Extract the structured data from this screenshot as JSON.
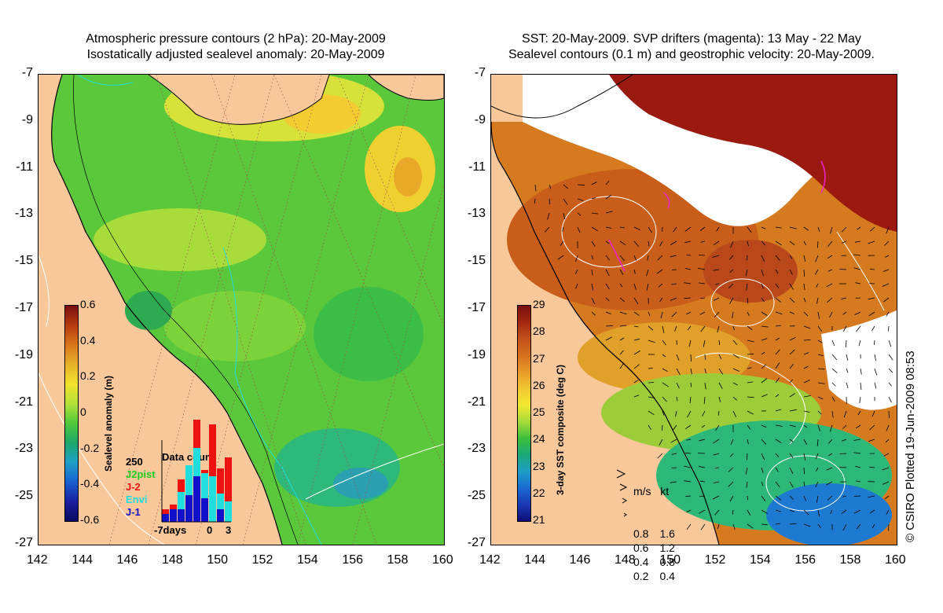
{
  "left_panel": {
    "title_line1": "Atmospheric pressure contours (2 hPa): 20-May-2009",
    "title_line2": "Isostatically adjusted sealevel anomaly: 20-May-2009",
    "colorbar": {
      "label": "Sealevel anomaly (m)",
      "ticks": [
        "0.6",
        "0.4",
        "0.2",
        "0",
        "-0.2",
        "-0.4",
        "-0.6"
      ]
    },
    "data_count": {
      "title": "Data count",
      "max_label": "250",
      "x_labels": [
        "-7days",
        "0",
        "3"
      ],
      "satellites": [
        {
          "name": "J2pist",
          "color": "#22cc22"
        },
        {
          "name": "J-2",
          "color": "#ee1111"
        },
        {
          "name": "Envi",
          "color": "#22dddd"
        },
        {
          "name": "J-1",
          "color": "#1111cc"
        }
      ]
    }
  },
  "right_panel": {
    "title_line1": "SST: 20-May-2009. SVP drifters (magenta): 13 May - 22 May",
    "title_line2": "Sealevel contours (0.1 m) and geostrophic velocity: 20-May-2009.",
    "colorbar": {
      "label": "3-day SST composite (deg C)",
      "ticks": [
        "29",
        "28",
        "27",
        "26",
        "25",
        "24",
        "23",
        "22",
        "21"
      ]
    },
    "velocity_legend": {
      "header": "m/s   kt",
      "rows": [
        {
          "ms": "0.8",
          "kt": "1.6"
        },
        {
          "ms": "0.6",
          "kt": "1.2"
        },
        {
          "ms": "0.4",
          "kt": "0.8"
        },
        {
          "ms": "0.2",
          "kt": "0.4"
        }
      ]
    }
  },
  "axes": {
    "lat_ticks": [
      "-7",
      "-9",
      "-11",
      "-13",
      "-15",
      "-17",
      "-19",
      "-21",
      "-23",
      "-25",
      "-27"
    ],
    "lon_ticks": [
      "142",
      "144",
      "146",
      "148",
      "150",
      "152",
      "154",
      "156",
      "158",
      "160"
    ]
  },
  "credit": "© CSIRO Plotted 19-Jun-2009 08:53",
  "colors": {
    "land": "#f8c89a",
    "coast": "#000000",
    "sla_green": "#5ac83a",
    "sst_orange": "#d67a20",
    "cloud": "#ffffff"
  }
}
